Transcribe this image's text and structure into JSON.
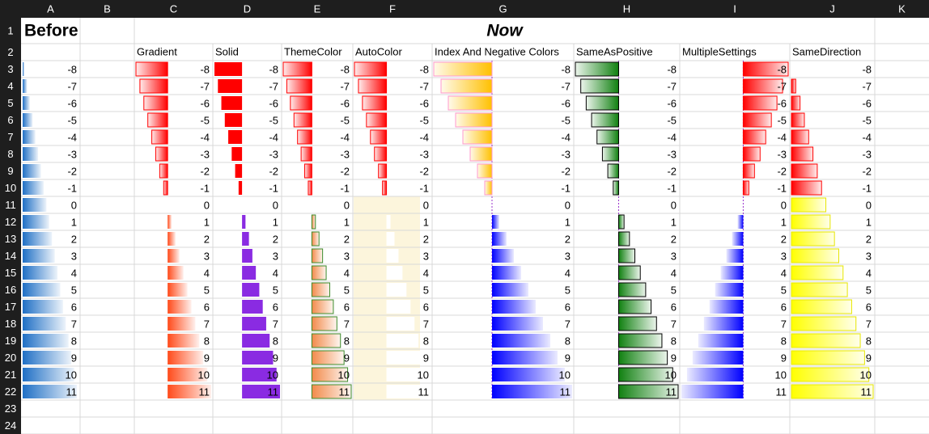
{
  "column_letters": [
    "A",
    "B",
    "C",
    "D",
    "E",
    "F",
    "G",
    "H",
    "I",
    "J",
    "K"
  ],
  "row_numbers": [
    1,
    2,
    3,
    4,
    5,
    6,
    7,
    8,
    9,
    10,
    11,
    12,
    13,
    14,
    15,
    16,
    17,
    18,
    19,
    20,
    21,
    22,
    23,
    24
  ],
  "before": {
    "title": "Before",
    "values": [
      -8,
      -7,
      -6,
      -5,
      -4,
      -3,
      -2,
      -1,
      0,
      1,
      2,
      3,
      4,
      5,
      6,
      7,
      8,
      9,
      10,
      11
    ]
  },
  "now": {
    "title": "Now",
    "columns": [
      {
        "header": "Gradient",
        "values": [
          -8,
          -7,
          -6,
          -5,
          -4,
          -3,
          -2,
          -1,
          0,
          1,
          2,
          3,
          4,
          5,
          6,
          7,
          8,
          9,
          10,
          11
        ]
      },
      {
        "header": "Solid",
        "values": [
          -8,
          -7,
          -6,
          -5,
          -4,
          -3,
          -2,
          -1,
          0,
          1,
          2,
          3,
          4,
          5,
          6,
          7,
          8,
          9,
          10,
          11
        ]
      },
      {
        "header": "ThemeColor",
        "values": [
          -8,
          -7,
          -6,
          -5,
          -4,
          -3,
          -2,
          -1,
          0,
          1,
          2,
          3,
          4,
          5,
          6,
          7,
          8,
          9,
          10,
          11
        ]
      },
      {
        "header": "AutoColor",
        "values": [
          -8,
          -7,
          -6,
          -5,
          -4,
          -3,
          -2,
          -1,
          0,
          1,
          2,
          3,
          4,
          5,
          6,
          7,
          8,
          9,
          10,
          11
        ]
      },
      {
        "header": "Index And Negative Colors",
        "values": [
          -8,
          -7,
          -6,
          -5,
          -4,
          -3,
          -2,
          -1,
          0,
          1,
          2,
          3,
          4,
          5,
          6,
          7,
          8,
          9,
          10,
          11
        ]
      },
      {
        "header": "SameAsPositive",
        "values": [
          -8,
          -7,
          -6,
          -5,
          -4,
          -3,
          -2,
          -1,
          0,
          1,
          2,
          3,
          4,
          5,
          6,
          7,
          8,
          9,
          10,
          11
        ]
      },
      {
        "header": "MultipleSettings",
        "values": [
          -8,
          -7,
          -6,
          -5,
          -4,
          -3,
          -2,
          -1,
          0,
          1,
          2,
          3,
          4,
          5,
          6,
          7,
          8,
          9,
          10,
          11
        ]
      },
      {
        "header": "SameDirection",
        "values": [
          -8,
          -7,
          -6,
          -5,
          -4,
          -3,
          -2,
          -1,
          0,
          1,
          2,
          3,
          4,
          5,
          6,
          7,
          8,
          9,
          10,
          11
        ]
      }
    ]
  }
}
